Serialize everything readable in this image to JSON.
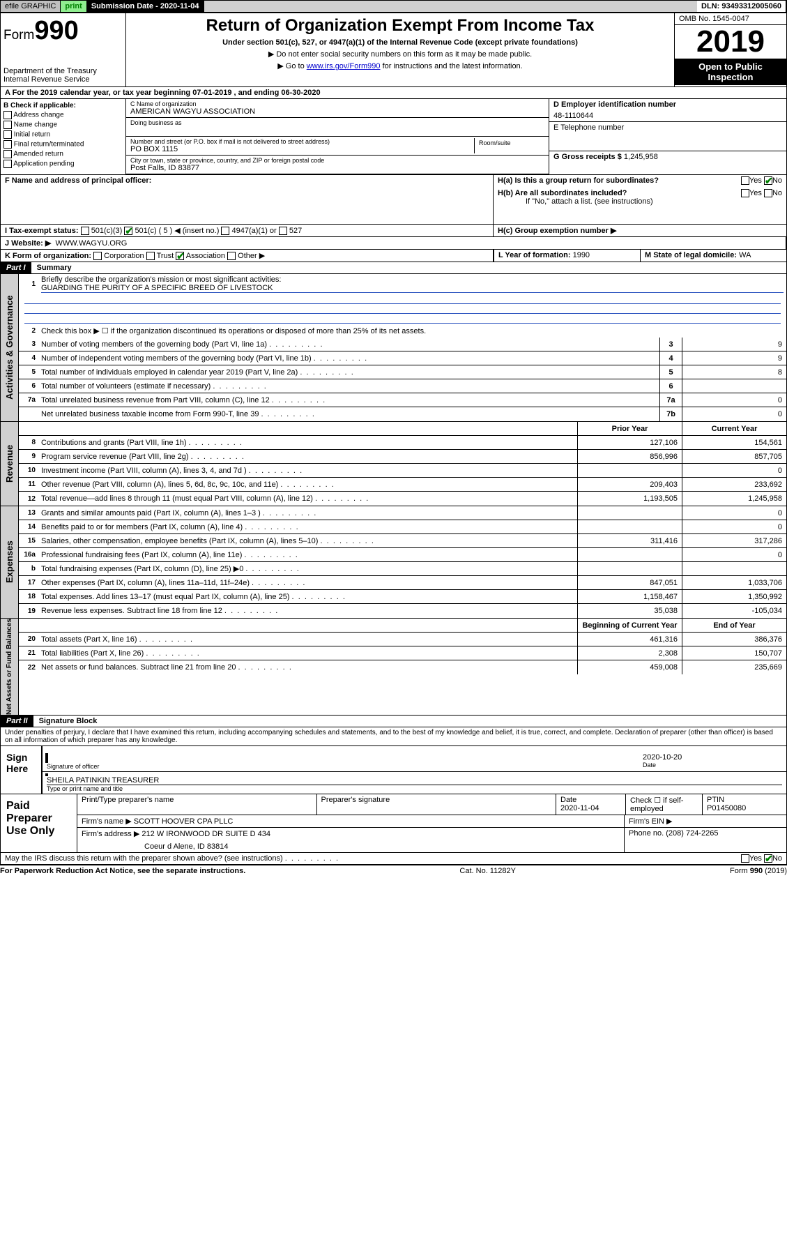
{
  "topbar": {
    "efile": "efile GRAPHIC",
    "print": "print",
    "subdate_label": "Submission Date - 2020-11-04",
    "dln": "DLN: 93493312005060"
  },
  "header": {
    "form_prefix": "Form",
    "form_num": "990",
    "dept1": "Department of the Treasury",
    "dept2": "Internal Revenue Service",
    "title": "Return of Organization Exempt From Income Tax",
    "subtitle": "Under section 501(c), 527, or 4947(a)(1) of the Internal Revenue Code (except private foundations)",
    "note1": "▶ Do not enter social security numbers on this form as it may be made public.",
    "note2_pre": "▶ Go to ",
    "note2_link": "www.irs.gov/Form990",
    "note2_post": " for instructions and the latest information.",
    "omb": "OMB No. 1545-0047",
    "year": "2019",
    "open": "Open to Public Inspection"
  },
  "taxyear": "A For the 2019 calendar year, or tax year beginning 07-01-2019   , and ending 06-30-2020",
  "colB": {
    "hdr": "B Check if applicable:",
    "opts": [
      "Address change",
      "Name change",
      "Initial return",
      "Final return/terminated",
      "Amended return",
      "Application pending"
    ]
  },
  "colC": {
    "name_lbl": "C Name of organization",
    "name": "AMERICAN WAGYU ASSOCIATION",
    "dba_lbl": "Doing business as",
    "addr_lbl": "Number and street (or P.O. box if mail is not delivered to street address)",
    "room_lbl": "Room/suite",
    "addr": "PO BOX 1115",
    "city_lbl": "City or town, state or province, country, and ZIP or foreign postal code",
    "city": "Post Falls, ID  83877",
    "officer_lbl": "F  Name and address of principal officer:"
  },
  "colD": {
    "ein_lbl": "D Employer identification number",
    "ein": "48-1110644",
    "phone_lbl": "E Telephone number",
    "gross_lbl": "G Gross receipts $",
    "gross": "1,245,958"
  },
  "colH": {
    "ha": "H(a)  Is this a group return for subordinates?",
    "hb": "H(b)  Are all subordinates included?",
    "hb_note": "If \"No,\" attach a list. (see instructions)",
    "hc": "H(c)  Group exemption number ▶",
    "yes": "Yes",
    "no": "No"
  },
  "rowI": {
    "lbl": "I   Tax-exempt status:",
    "c3": "501(c)(3)",
    "c": "501(c) ( 5 ) ◀ (insert no.)",
    "a1": "4947(a)(1) or",
    "527": "527"
  },
  "rowJ": {
    "lbl": "J   Website: ▶",
    "val": "WWW.WAGYU.ORG"
  },
  "rowK": {
    "lbl": "K Form of organization:",
    "corp": "Corporation",
    "trust": "Trust",
    "assoc": "Association",
    "other": "Other ▶"
  },
  "rowL": {
    "lbl": "L Year of formation:",
    "val": "1990"
  },
  "rowM": {
    "lbl": "M State of legal domicile:",
    "val": "WA"
  },
  "part1": {
    "hdr": "Part I",
    "title": "Summary"
  },
  "summary": {
    "q1": "Briefly describe the organization's mission or most significant activities:",
    "q1a": "GUARDING THE PURITY OF A SPECIFIC BREED OF LIVESTOCK",
    "q2": "Check this box ▶ ☐  if the organization discontinued its operations or disposed of more than 25% of its net assets.",
    "rows": [
      {
        "n": "3",
        "t": "Number of voting members of the governing body (Part VI, line 1a)",
        "box": "3",
        "v": "9"
      },
      {
        "n": "4",
        "t": "Number of independent voting members of the governing body (Part VI, line 1b)",
        "box": "4",
        "v": "9"
      },
      {
        "n": "5",
        "t": "Total number of individuals employed in calendar year 2019 (Part V, line 2a)",
        "box": "5",
        "v": "8"
      },
      {
        "n": "6",
        "t": "Total number of volunteers (estimate if necessary)",
        "box": "6",
        "v": ""
      },
      {
        "n": "7a",
        "t": "Total unrelated business revenue from Part VIII, column (C), line 12",
        "box": "7a",
        "v": "0"
      },
      {
        "n": "",
        "t": "Net unrelated business taxable income from Form 990-T, line 39",
        "box": "7b",
        "v": "0"
      }
    ]
  },
  "sections": {
    "gov_lbl": "Activities & Governance",
    "rev_lbl": "Revenue",
    "exp_lbl": "Expenses",
    "net_lbl": "Net Assets or Fund Balances"
  },
  "tableHdr": {
    "prior": "Prior Year",
    "current": "Current Year",
    "begin": "Beginning of Current Year",
    "end": "End of Year"
  },
  "revenue": [
    {
      "n": "8",
      "t": "Contributions and grants (Part VIII, line 1h)",
      "p": "127,106",
      "c": "154,561"
    },
    {
      "n": "9",
      "t": "Program service revenue (Part VIII, line 2g)",
      "p": "856,996",
      "c": "857,705"
    },
    {
      "n": "10",
      "t": "Investment income (Part VIII, column (A), lines 3, 4, and 7d )",
      "p": "",
      "c": "0"
    },
    {
      "n": "11",
      "t": "Other revenue (Part VIII, column (A), lines 5, 6d, 8c, 9c, 10c, and 11e)",
      "p": "209,403",
      "c": "233,692"
    },
    {
      "n": "12",
      "t": "Total revenue—add lines 8 through 11 (must equal Part VIII, column (A), line 12)",
      "p": "1,193,505",
      "c": "1,245,958"
    }
  ],
  "expenses": [
    {
      "n": "13",
      "t": "Grants and similar amounts paid (Part IX, column (A), lines 1–3 )",
      "p": "",
      "c": "0"
    },
    {
      "n": "14",
      "t": "Benefits paid to or for members (Part IX, column (A), line 4)",
      "p": "",
      "c": "0"
    },
    {
      "n": "15",
      "t": "Salaries, other compensation, employee benefits (Part IX, column (A), lines 5–10)",
      "p": "311,416",
      "c": "317,286"
    },
    {
      "n": "16a",
      "t": "Professional fundraising fees (Part IX, column (A), line 11e)",
      "p": "",
      "c": "0"
    },
    {
      "n": "b",
      "t": "Total fundraising expenses (Part IX, column (D), line 25) ▶0",
      "p": "",
      "c": ""
    },
    {
      "n": "17",
      "t": "Other expenses (Part IX, column (A), lines 11a–11d, 11f–24e)",
      "p": "847,051",
      "c": "1,033,706"
    },
    {
      "n": "18",
      "t": "Total expenses. Add lines 13–17 (must equal Part IX, column (A), line 25)",
      "p": "1,158,467",
      "c": "1,350,992"
    },
    {
      "n": "19",
      "t": "Revenue less expenses. Subtract line 18 from line 12",
      "p": "35,038",
      "c": "-105,034"
    }
  ],
  "netassets": [
    {
      "n": "20",
      "t": "Total assets (Part X, line 16)",
      "p": "461,316",
      "c": "386,376"
    },
    {
      "n": "21",
      "t": "Total liabilities (Part X, line 26)",
      "p": "2,308",
      "c": "150,707"
    },
    {
      "n": "22",
      "t": "Net assets or fund balances. Subtract line 21 from line 20",
      "p": "459,008",
      "c": "235,669"
    }
  ],
  "part2": {
    "hdr": "Part II",
    "title": "Signature Block"
  },
  "perjury": "Under penalties of perjury, I declare that I have examined this return, including accompanying schedules and statements, and to the best of my knowledge and belief, it is true, correct, and complete. Declaration of preparer (other than officer) is based on all information of which preparer has any knowledge.",
  "sign": {
    "here": "Sign Here",
    "date": "2020-10-20",
    "sig_lbl": "Signature of officer",
    "date_lbl": "Date",
    "name": "SHEILA PATINKIN  TREASURER",
    "name_lbl": "Type or print name and title"
  },
  "paid": {
    "hdr": "Paid Preparer Use Only",
    "prep_name_lbl": "Print/Type preparer's name",
    "prep_sig_lbl": "Preparer's signature",
    "date_lbl": "Date",
    "date": "2020-11-04",
    "check_lbl": "Check ☐ if self-employed",
    "ptin_lbl": "PTIN",
    "ptin": "P01450080",
    "firm_name_lbl": "Firm's name   ▶",
    "firm_name": "SCOTT HOOVER CPA PLLC",
    "firm_ein_lbl": "Firm's EIN ▶",
    "firm_addr_lbl": "Firm's address ▶",
    "firm_addr1": "212 W IRONWOOD DR SUITE D 434",
    "firm_addr2": "Coeur d Alene, ID  83814",
    "phone_lbl": "Phone no.",
    "phone": "(208) 724-2265"
  },
  "discuss": "May the IRS discuss this return with the preparer shown above? (see instructions)",
  "footer": {
    "paperwork": "For Paperwork Reduction Act Notice, see the separate instructions.",
    "cat": "Cat. No. 11282Y",
    "form": "Form 990 (2019)"
  }
}
